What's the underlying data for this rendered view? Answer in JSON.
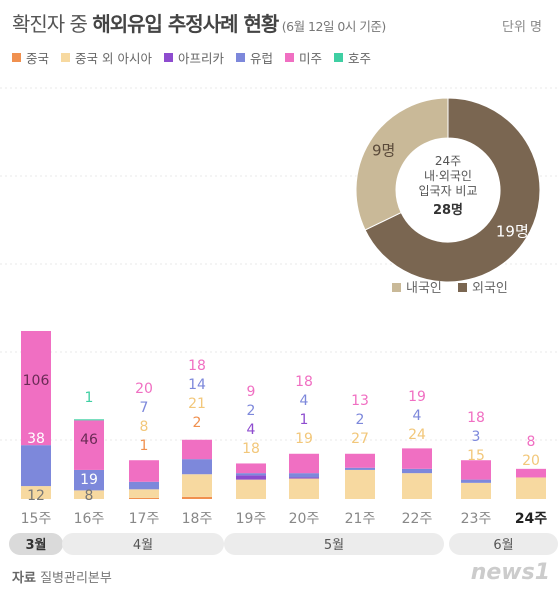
{
  "header": {
    "title_plain": "확진자 중 ",
    "title_bold": "해외유입 추정사례 현황",
    "title_sub": " (6월 12일 0시 기준)",
    "unit": "단위 명"
  },
  "legend": [
    {
      "name": "중국",
      "color": "#f0904f"
    },
    {
      "name": "중국 외 아시아",
      "color": "#f7d9a0"
    },
    {
      "name": "아프리카",
      "color": "#8e4ccf"
    },
    {
      "name": "유럽",
      "color": "#7d88db"
    },
    {
      "name": "미주",
      "color": "#f06fc2"
    },
    {
      "name": "호주",
      "color": "#3fcfa3"
    }
  ],
  "chart_data": [
    {
      "type": "bar",
      "stacked": true,
      "categories": [
        "15주",
        "16주",
        "17주",
        "18주",
        "19주",
        "20주",
        "21주",
        "22주",
        "23주",
        "24주"
      ],
      "series": [
        {
          "name": "중국",
          "values": [
            0,
            0,
            1,
            2,
            0,
            0,
            0,
            0,
            0,
            0
          ]
        },
        {
          "name": "중국 외 아시아",
          "values": [
            12,
            8,
            8,
            21,
            18,
            19,
            27,
            24,
            15,
            20
          ]
        },
        {
          "name": "아프리카",
          "values": [
            0,
            0,
            0,
            0,
            4,
            1,
            0,
            0,
            0,
            0
          ]
        },
        {
          "name": "유럽",
          "values": [
            38,
            19,
            7,
            14,
            2,
            4,
            2,
            4,
            3,
            0
          ]
        },
        {
          "name": "미주",
          "values": [
            106,
            46,
            20,
            18,
            9,
            18,
            13,
            19,
            18,
            8
          ]
        },
        {
          "name": "호주",
          "values": [
            0,
            1,
            0,
            0,
            0,
            0,
            0,
            0,
            0,
            0
          ]
        }
      ],
      "month_groups": [
        {
          "label": "3월",
          "weeks": [
            "15주"
          ]
        },
        {
          "label": "4월",
          "weeks": [
            "16주",
            "17주",
            "18주"
          ]
        },
        {
          "label": "5월",
          "weeks": [
            "19주",
            "20주",
            "21주",
            "22주"
          ]
        },
        {
          "label": "6월",
          "weeks": [
            "23주",
            "24주"
          ]
        }
      ],
      "highlight_category": "24주"
    },
    {
      "type": "pie",
      "donut": true,
      "center_text": [
        "24주",
        "내·외국인",
        "입국자 비교",
        "28명"
      ],
      "slices": [
        {
          "name": "내국인",
          "value": 9,
          "label": "9명",
          "color": "#c9b998"
        },
        {
          "name": "외국인",
          "value": 19,
          "label": "19명",
          "color": "#7a6651"
        }
      ]
    }
  ],
  "footer": {
    "source_key": "자료",
    "source_value": "질병관리본부",
    "logo": "news1"
  }
}
